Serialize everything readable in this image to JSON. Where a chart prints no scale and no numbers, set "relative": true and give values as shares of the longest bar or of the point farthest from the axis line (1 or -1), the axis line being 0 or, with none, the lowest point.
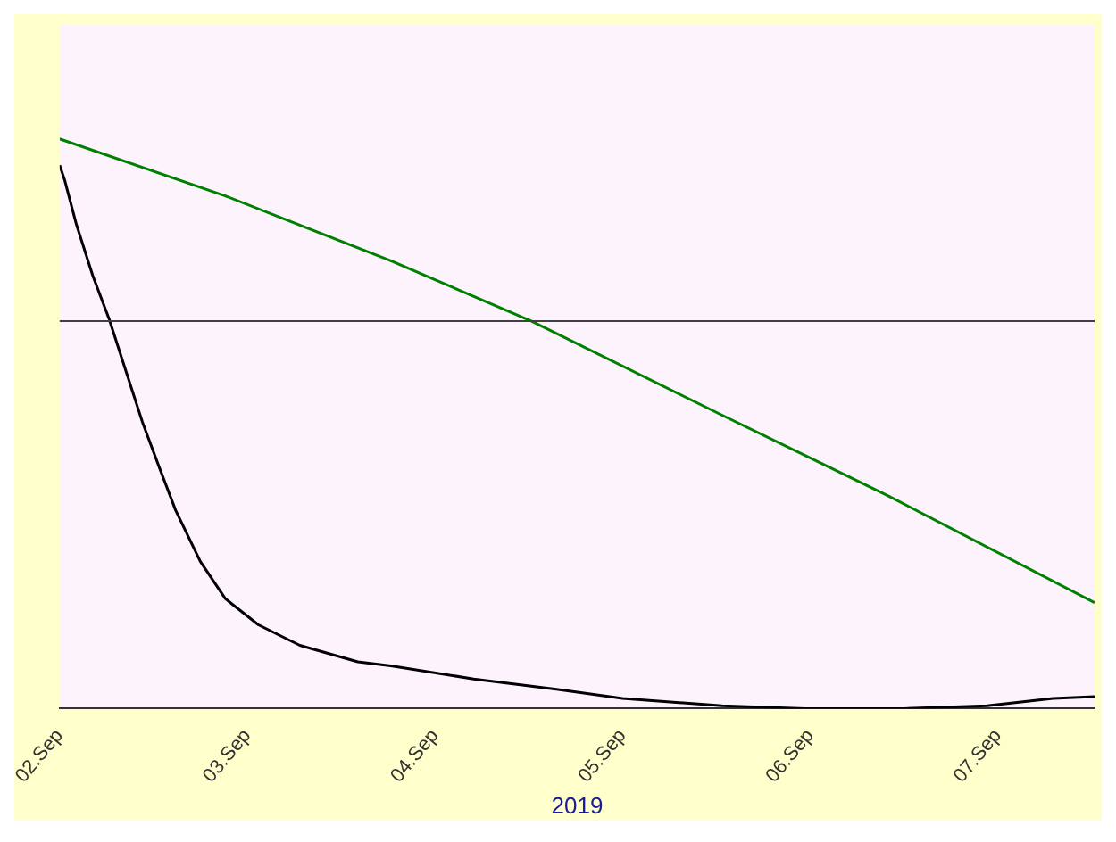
{
  "chart_data": {
    "type": "line",
    "relative": true,
    "marker": "none",
    "xlabel": "2019",
    "xlim": [
      "2019-09-02",
      "2019-09-07T12:22"
    ],
    "xticks": [
      {
        "value": "2019-09-02",
        "label": "02.Sep"
      },
      {
        "value": "2019-09-03",
        "label": "03.Sep"
      },
      {
        "value": "2019-09-04",
        "label": "04.Sep"
      },
      {
        "value": "2019-09-05",
        "label": "05.Sep"
      },
      {
        "value": "2019-09-06",
        "label": "06.Sep"
      },
      {
        "value": "2019-09-07",
        "label": "07.Sep"
      }
    ],
    "ref_lines": [
      {
        "axis": "y",
        "value": 0.68,
        "color": "#404040"
      }
    ],
    "series": [
      {
        "color": "#008000",
        "x": [
          "2019-09-02T00:00",
          "2019-09-02T21:11",
          "2019-09-03T18:22",
          "2019-09-04T12:22",
          "2019-09-05T12:44",
          "2019-09-06T09:54",
          "2019-09-07T12:22"
        ],
        "values": [
          1,
          0.9,
          0.786,
          0.68,
          0.515,
          0.374,
          0.186
        ]
      },
      {
        "color": "#000000",
        "x": [
          "2019-09-02T00:00",
          "2019-09-02T00:38",
          "2019-09-02T02:07",
          "2019-09-02T04:14",
          "2019-09-02T06:21",
          "2019-09-02T08:28",
          "2019-09-02T10:35",
          "2019-09-02T12:42",
          "2019-09-02T14:50",
          "2019-09-02T18:00",
          "2019-09-02T21:11",
          "2019-09-03T01:25",
          "2019-09-03T06:43",
          "2019-09-03T14:08",
          "2019-09-03T18:22",
          "2019-09-04T04:57",
          "2019-09-04T15:32",
          "2019-09-05T00:00",
          "2019-09-05T12:44",
          "2019-09-05T23:19",
          "2019-09-06T12:01",
          "2019-09-06T22:37",
          "2019-09-07T07:04",
          "2019-09-07T12:22"
        ],
        "values": [
          0.954,
          0.928,
          0.851,
          0.76,
          0.683,
          0.593,
          0.503,
          0.425,
          0.348,
          0.258,
          0.193,
          0.147,
          0.111,
          0.082,
          0.075,
          0.052,
          0.034,
          0.018,
          0.005,
          0,
          0,
          0.005,
          0.018,
          0.021
        ]
      }
    ]
  }
}
